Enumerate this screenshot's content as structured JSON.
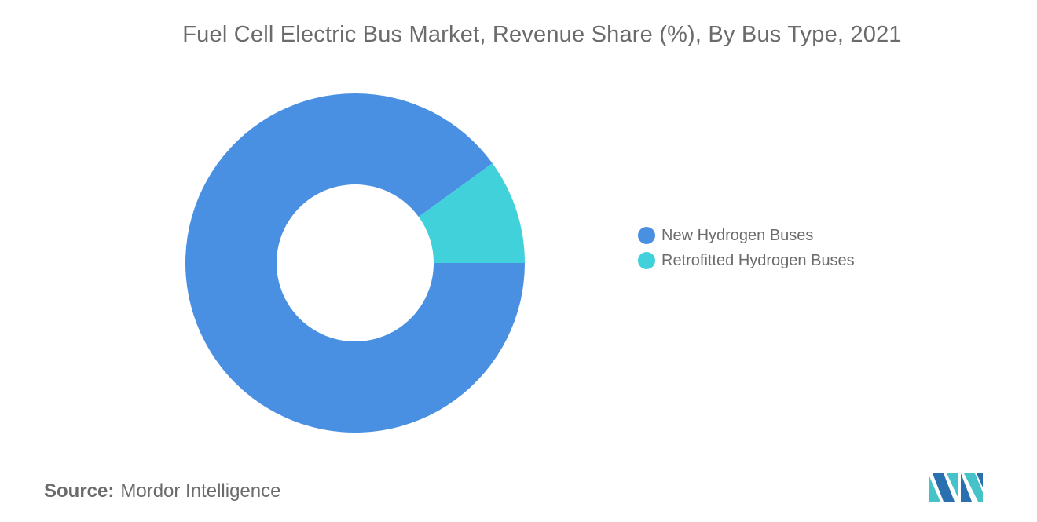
{
  "chart_data": {
    "type": "pie",
    "title": "Fuel Cell Electric Bus Market, Revenue Share (%), By Bus Type, 2021",
    "donut": true,
    "categories": [
      "New Hydrogen Buses",
      "Retrofitted Hydrogen Buses"
    ],
    "values": [
      90,
      10
    ],
    "colors": [
      "#4a90e2",
      "#41d1da"
    ],
    "legend_position": "right",
    "start_angle_deg": 0,
    "direction": "clockwise-from-east"
  },
  "source": {
    "label": "Source:",
    "value": "Mordor Intelligence"
  },
  "logo": {
    "icon": "mordor-intelligence-logo",
    "colors": [
      "#46c3c9",
      "#2a6fb0"
    ]
  }
}
